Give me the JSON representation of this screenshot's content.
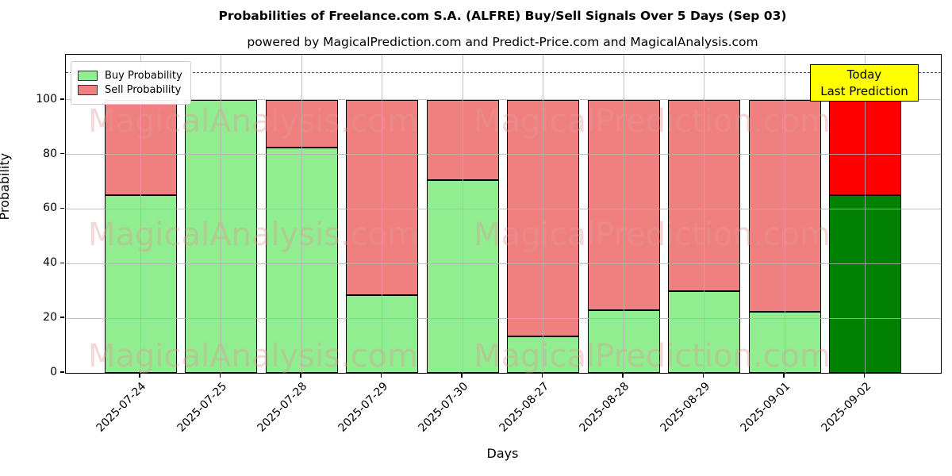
{
  "title": "Probabilities of Freelance.com S.A. (ALFRE) Buy/Sell Signals Over 5 Days (Sep 03)",
  "subtitle": "powered by MagicalPrediction.com and Predict-Price.com and MagicalAnalysis.com",
  "legend": {
    "items": [
      {
        "label": "Buy Probability",
        "color": "#90EE90"
      },
      {
        "label": "Sell Probability",
        "color": "#F08080"
      }
    ]
  },
  "annotation": {
    "line1": "Today",
    "line2": "Last Prediction",
    "bg_color": "#FFFF00"
  },
  "watermarks": {
    "left_text": "MagicalAnalysis.com",
    "right_text": "MagicalPrediction.com",
    "color": "rgba(225,150,150,0.38)"
  },
  "colors": {
    "buy": "#90EE90",
    "sell": "#F08080",
    "today_buy": "#008000",
    "today_sell": "#FF0000",
    "grid": "#b3b3b3",
    "dashed_line": "#555555"
  },
  "chart_data": {
    "type": "bar",
    "stacked": true,
    "title": "Probabilities of Freelance.com S.A. (ALFRE) Buy/Sell Signals Over 5 Days (Sep 03)",
    "xlabel": "Days",
    "ylabel": "Probability",
    "categories": [
      "2025-07-24",
      "2025-07-25",
      "2025-07-28",
      "2025-07-29",
      "2025-07-30",
      "2025-08-27",
      "2025-08-28",
      "2025-08-29",
      "2025-09-01",
      "2025-09-02"
    ],
    "series": [
      {
        "name": "Buy Probability",
        "values": [
          65,
          100,
          82.5,
          28.5,
          70.5,
          13.5,
          23,
          30,
          22.5,
          65
        ],
        "colors": [
          "#90EE90",
          "#90EE90",
          "#90EE90",
          "#90EE90",
          "#90EE90",
          "#90EE90",
          "#90EE90",
          "#90EE90",
          "#90EE90",
          "#008000"
        ]
      },
      {
        "name": "Sell Probability",
        "values": [
          35,
          0,
          17.5,
          71.5,
          29.5,
          86.5,
          77,
          70,
          77.5,
          35
        ],
        "colors": [
          "#F08080",
          "#F08080",
          "#F08080",
          "#F08080",
          "#F08080",
          "#F08080",
          "#F08080",
          "#F08080",
          "#F08080",
          "#FF0000"
        ]
      }
    ],
    "yticks": [
      0,
      20,
      40,
      60,
      80,
      100
    ],
    "ylim": [
      0,
      116.5
    ],
    "dashed_line_y": 110,
    "grid": true,
    "legend_position": "upper left",
    "annotation_box": "Today / Last Prediction (on last bar)"
  }
}
